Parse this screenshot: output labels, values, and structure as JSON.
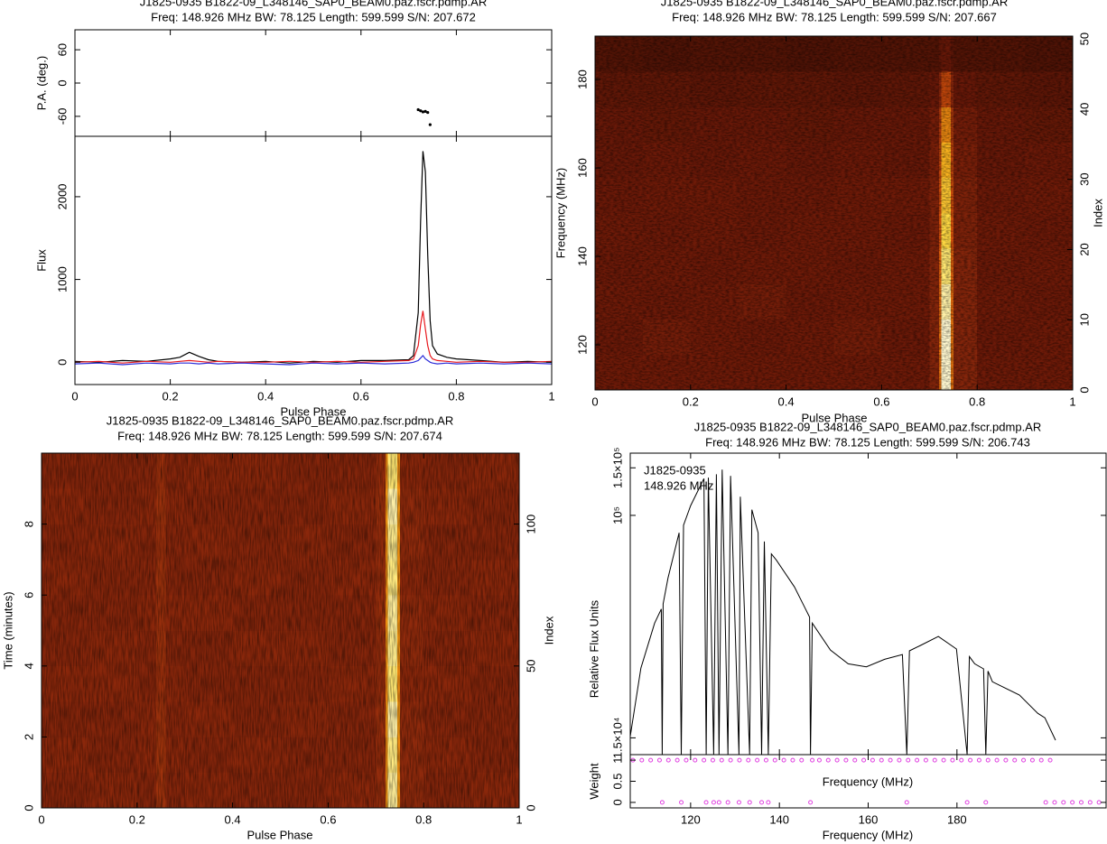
{
  "chart_data": [
    {
      "type": "pulse-profile",
      "title": "J1825-0935 B1822-09_L348146_SAP0_BEAM0.paz.fscr.pdmp.AR",
      "subtitle": "Freq: 148.926 MHz BW: 78.125 Length: 599.599 S/N: 207.672",
      "xlabel": "Pulse Phase",
      "xlim": [
        0,
        1
      ],
      "xticks": [
        0,
        0.2,
        0.4,
        0.6,
        0.8,
        1
      ],
      "pa": {
        "ylabel": "P.A. (deg.)",
        "ylim": [
          -96,
          96
        ],
        "yticks": [
          -60,
          0,
          60
        ],
        "color": "#000000",
        "x": [
          0.72,
          0.725,
          0.73,
          0.735,
          0.74,
          0.745
        ],
        "values": [
          -48,
          -50,
          -52,
          -51,
          -53,
          -75
        ]
      },
      "flux": {
        "ylabel": "Flux",
        "ylim": [
          -270,
          2730
        ],
        "yticks": [
          0,
          1000,
          2000
        ],
        "x": [
          0,
          0.05,
          0.1,
          0.15,
          0.2,
          0.22,
          0.24,
          0.26,
          0.28,
          0.3,
          0.35,
          0.4,
          0.45,
          0.5,
          0.55,
          0.6,
          0.65,
          0.7,
          0.71,
          0.72,
          0.725,
          0.73,
          0.735,
          0.74,
          0.745,
          0.75,
          0.76,
          0.78,
          0.8,
          0.85,
          0.9,
          0.95,
          1
        ],
        "series": [
          {
            "color": "#000000",
            "values": [
              10,
              0,
              20,
              10,
              40,
              60,
              120,
              70,
              30,
              10,
              0,
              10,
              -10,
              10,
              0,
              20,
              20,
              30,
              80,
              600,
              1700,
              2550,
              2300,
              1300,
              500,
              200,
              100,
              60,
              40,
              20,
              0,
              10,
              0
            ]
          },
          {
            "color": "#e8191e",
            "values": [
              0,
              10,
              -10,
              10,
              0,
              10,
              20,
              10,
              0,
              10,
              0,
              0,
              10,
              0,
              10,
              0,
              10,
              20,
              40,
              200,
              450,
              620,
              400,
              200,
              80,
              40,
              20,
              10,
              0,
              10,
              0,
              0,
              10
            ]
          },
          {
            "color": "#2b2bd8",
            "values": [
              -20,
              -10,
              -30,
              -10,
              -20,
              -10,
              -10,
              -20,
              -10,
              -20,
              -10,
              -20,
              -30,
              -10,
              -20,
              -10,
              -20,
              -10,
              0,
              20,
              50,
              80,
              40,
              20,
              0,
              -10,
              -20,
              -10,
              -20,
              -10,
              -20,
              -10,
              -20
            ]
          }
        ]
      }
    },
    {
      "type": "heatmap",
      "title": "J1825-0935 B1822-09_L348146_SAP0_BEAM0.paz.fscr.pdmp.AR",
      "subtitle": "Freq: 148.926 MHz BW: 78.125 Length: 599.599 S/N: 207.667",
      "xlabel": "Pulse Phase",
      "ylabel": "Frequency (MHz)",
      "y2label": "Index",
      "xlim": [
        0,
        1
      ],
      "xticks": [
        0,
        0.2,
        0.4,
        0.6,
        0.8,
        1
      ],
      "ylim": [
        109.8,
        189.8
      ],
      "yticks": [
        120,
        140,
        160,
        180
      ],
      "y2lim": [
        0,
        50.4
      ],
      "y2ticks": [
        0,
        10,
        20,
        30,
        40,
        50
      ],
      "xbins": [
        0,
        0.1,
        0.2,
        0.3,
        0.4,
        0.5,
        0.6,
        0.7,
        0.72,
        0.725,
        0.745,
        0.75,
        0.8,
        0.9,
        1
      ],
      "ybins": [
        109.8,
        117.8,
        125.8,
        133.8,
        141.8,
        149.8,
        157.8,
        165.8,
        173.8,
        181.8,
        189.8
      ],
      "z": [
        [
          0.32,
          0.32,
          0.32,
          0.32,
          0.32,
          0.32,
          0.32,
          0.36,
          0.62,
          1,
          0.62,
          0.36,
          0.32,
          0.32
        ],
        [
          0.31,
          0.33,
          0.32,
          0.31,
          0.32,
          0.33,
          0.31,
          0.36,
          0.62,
          1,
          0.62,
          0.36,
          0.31,
          0.32
        ],
        [
          0.32,
          0.31,
          0.32,
          0.33,
          0.31,
          0.32,
          0.32,
          0.36,
          0.6,
          0.97,
          0.6,
          0.36,
          0.32,
          0.31
        ],
        [
          0.31,
          0.32,
          0.31,
          0.32,
          0.32,
          0.31,
          0.32,
          0.36,
          0.58,
          0.93,
          0.58,
          0.36,
          0.31,
          0.32
        ],
        [
          0.32,
          0.31,
          0.32,
          0.31,
          0.32,
          0.32,
          0.31,
          0.35,
          0.55,
          0.88,
          0.55,
          0.35,
          0.32,
          0.31
        ],
        [
          0.31,
          0.32,
          0.32,
          0.31,
          0.31,
          0.32,
          0.32,
          0.35,
          0.52,
          0.83,
          0.52,
          0.35,
          0.31,
          0.32
        ],
        [
          0.3,
          0.31,
          0.3,
          0.31,
          0.3,
          0.31,
          0.3,
          0.34,
          0.48,
          0.78,
          0.48,
          0.34,
          0.3,
          0.31
        ],
        [
          0.3,
          0.29,
          0.3,
          0.3,
          0.29,
          0.3,
          0.3,
          0.33,
          0.43,
          0.68,
          0.43,
          0.33,
          0.3,
          0.29
        ],
        [
          0.28,
          0.28,
          0.27,
          0.28,
          0.28,
          0.27,
          0.28,
          0.3,
          0.36,
          0.5,
          0.36,
          0.3,
          0.28,
          0.27
        ],
        [
          0.24,
          0.23,
          0.24,
          0.24,
          0.23,
          0.24,
          0.24,
          0.24,
          0.26,
          0.3,
          0.26,
          0.24,
          0.24,
          0.23
        ]
      ],
      "colormap": [
        [
          0,
          "#000000"
        ],
        [
          0.32,
          "#6e1a08"
        ],
        [
          0.38,
          "#8f2a0c"
        ],
        [
          0.55,
          "#d2500a"
        ],
        [
          0.75,
          "#f5a514"
        ],
        [
          0.9,
          "#ffe04a"
        ],
        [
          1,
          "#fff8d0"
        ]
      ]
    },
    {
      "type": "heatmap",
      "title": "J1825-0935 B1822-09_L348146_SAP0_BEAM0.paz.fscr.pdmp.AR",
      "subtitle": "Freq: 148.926 MHz BW: 78.125 Length: 599.599 S/N: 207.674",
      "xlabel": "Pulse Phase",
      "ylabel": "Time (minutes)",
      "y2label": "Index",
      "xlim": [
        0,
        1
      ],
      "xticks": [
        0,
        0.2,
        0.4,
        0.6,
        0.8,
        1
      ],
      "ylim": [
        0,
        10
      ],
      "yticks": [
        0,
        2,
        4,
        6,
        8
      ],
      "y2lim": [
        0,
        125
      ],
      "y2ticks": [
        0,
        50,
        100
      ],
      "xbins": [
        0,
        0.1,
        0.2,
        0.24,
        0.26,
        0.3,
        0.4,
        0.5,
        0.6,
        0.7,
        0.72,
        0.725,
        0.745,
        0.75,
        0.8,
        0.9,
        1
      ],
      "ybins": [
        0,
        1,
        2,
        3,
        4,
        5,
        6,
        7,
        8,
        9,
        10
      ],
      "z": [
        [
          0.36,
          0.37,
          0.36,
          0.41,
          0.36,
          0.37,
          0.36,
          0.36,
          0.37,
          0.39,
          0.7,
          0.96,
          0.7,
          0.38,
          0.36,
          0.37
        ],
        [
          0.37,
          0.36,
          0.37,
          0.42,
          0.37,
          0.36,
          0.37,
          0.36,
          0.36,
          0.39,
          0.69,
          0.94,
          0.69,
          0.38,
          0.37,
          0.36
        ],
        [
          0.36,
          0.36,
          0.37,
          0.41,
          0.36,
          0.37,
          0.36,
          0.37,
          0.36,
          0.4,
          0.71,
          0.97,
          0.71,
          0.38,
          0.36,
          0.36
        ],
        [
          0.37,
          0.37,
          0.36,
          0.4,
          0.37,
          0.36,
          0.36,
          0.36,
          0.37,
          0.39,
          0.68,
          0.93,
          0.68,
          0.37,
          0.37,
          0.36
        ],
        [
          0.36,
          0.37,
          0.36,
          0.41,
          0.36,
          0.36,
          0.37,
          0.37,
          0.36,
          0.39,
          0.7,
          0.95,
          0.7,
          0.38,
          0.36,
          0.37
        ],
        [
          0.36,
          0.36,
          0.37,
          0.4,
          0.37,
          0.37,
          0.36,
          0.36,
          0.36,
          0.4,
          0.7,
          0.96,
          0.7,
          0.38,
          0.37,
          0.36
        ],
        [
          0.37,
          0.36,
          0.36,
          0.41,
          0.36,
          0.36,
          0.37,
          0.36,
          0.37,
          0.39,
          0.69,
          0.94,
          0.69,
          0.37,
          0.36,
          0.37
        ],
        [
          0.36,
          0.37,
          0.36,
          0.4,
          0.36,
          0.37,
          0.36,
          0.37,
          0.36,
          0.39,
          0.7,
          0.95,
          0.7,
          0.38,
          0.36,
          0.36
        ],
        [
          0.37,
          0.36,
          0.37,
          0.41,
          0.37,
          0.36,
          0.36,
          0.36,
          0.37,
          0.4,
          0.71,
          0.97,
          0.71,
          0.38,
          0.37,
          0.36
        ],
        [
          0.36,
          0.36,
          0.36,
          0.4,
          0.36,
          0.37,
          0.37,
          0.36,
          0.36,
          0.39,
          0.68,
          0.93,
          0.68,
          0.37,
          0.36,
          0.37
        ]
      ],
      "colormap": [
        [
          0,
          "#000000"
        ],
        [
          0.32,
          "#6e1a08"
        ],
        [
          0.38,
          "#8f2a0c"
        ],
        [
          0.55,
          "#d2500a"
        ],
        [
          0.75,
          "#f5a514"
        ],
        [
          0.9,
          "#ffe04a"
        ],
        [
          1,
          "#fff8d0"
        ]
      ]
    },
    {
      "type": "bandpass",
      "title": "J1825-0935 B1822-09_L348146_SAP0_BEAM0.paz.fscr.pdmp.AR",
      "subtitle": "Freq: 148.926 MHz BW: 78.125 Length: 599.599 S/N: 206.743",
      "xlabel": "Frequency (MHz)",
      "ylabel": "Relative Flux Units",
      "annotations": [
        "J1825-0935",
        "148.926 MHz"
      ],
      "xlim": [
        106.4,
        213.6
      ],
      "xticks": [
        120,
        140,
        160,
        180
      ],
      "log": true,
      "ylim": [
        13000,
        170000
      ],
      "yticks": [
        {
          "value": 15000,
          "label": "1.5×10⁴"
        },
        {
          "value": 100000,
          "label": "10⁵"
        },
        {
          "value": 150000,
          "label": "1.5×10⁵"
        }
      ],
      "color": "#000000",
      "x": [
        106.4,
        108.8,
        111.9,
        113.4,
        113.6,
        113.8,
        114.9,
        117.4,
        117.9,
        118.4,
        120,
        123,
        123.5,
        124,
        125.2,
        125.8,
        126.4,
        127.1,
        128.4,
        129,
        130.9,
        131.2,
        133.3,
        133.8,
        135.2,
        136,
        136.6,
        137.5,
        138.2,
        139.3,
        143.4,
        146.8,
        147,
        147.4,
        151.5,
        155.5,
        159.6,
        163.7,
        167.7,
        168.7,
        169.3,
        171.8,
        175.8,
        179.9,
        182.3,
        182.8,
        184,
        186,
        186.5,
        187,
        188,
        194.1,
        198.2,
        199.8,
        202.2
      ],
      "values": [
        15200,
        27200,
        39900,
        45000,
        13000,
        47000,
        58600,
        86200,
        13000,
        92000,
        108700,
        136800,
        13000,
        138000,
        13000,
        142000,
        13000,
        147800,
        13000,
        140000,
        13000,
        117200,
        13000,
        105000,
        86200,
        13000,
        80000,
        13000,
        72000,
        68400,
        54300,
        42000,
        13000,
        39900,
        31700,
        28200,
        27500,
        29300,
        30500,
        13000,
        31500,
        33000,
        35600,
        32000,
        13000,
        30000,
        28200,
        27000,
        13000,
        26500,
        24200,
        21600,
        18500,
        17800,
        14700
      ],
      "weight": {
        "ylabel": "Weight",
        "xlabel": "Frequency (MHz)",
        "ylim": [
          -0.13,
          1.13
        ],
        "yticks": [
          0,
          0.5,
          1
        ],
        "color": "#e040e0",
        "x": [
          107,
          109,
          111,
          113,
          113.6,
          115,
          117,
          117.9,
          119,
          121,
          123,
          123.5,
          125,
          125.2,
          126.4,
          127,
          128.4,
          129,
          130.9,
          131,
          133,
          133.3,
          135,
          136,
          137,
          137.5,
          139,
          141,
          143,
          145,
          147,
          147.4,
          149,
          151,
          153,
          155,
          157,
          159,
          161,
          163,
          165,
          167,
          168.7,
          169,
          171,
          173,
          175,
          177,
          179,
          181,
          182.3,
          183,
          185,
          186.5,
          187,
          189,
          191,
          193,
          195,
          197,
          199,
          200,
          201,
          202,
          204,
          206,
          208,
          210,
          212
        ],
        "values": [
          1,
          1,
          1,
          1,
          0,
          1,
          1,
          0,
          1,
          1,
          1,
          0,
          1,
          0,
          0,
          1,
          0,
          1,
          0,
          1,
          1,
          0,
          1,
          0,
          1,
          0,
          1,
          1,
          1,
          1,
          0,
          1,
          1,
          1,
          1,
          1,
          1,
          1,
          1,
          1,
          1,
          1,
          0,
          1,
          1,
          1,
          1,
          1,
          1,
          1,
          0,
          1,
          1,
          0,
          1,
          1,
          1,
          1,
          1,
          1,
          1,
          0,
          1,
          0,
          0,
          0,
          0,
          0,
          0
        ]
      }
    }
  ]
}
